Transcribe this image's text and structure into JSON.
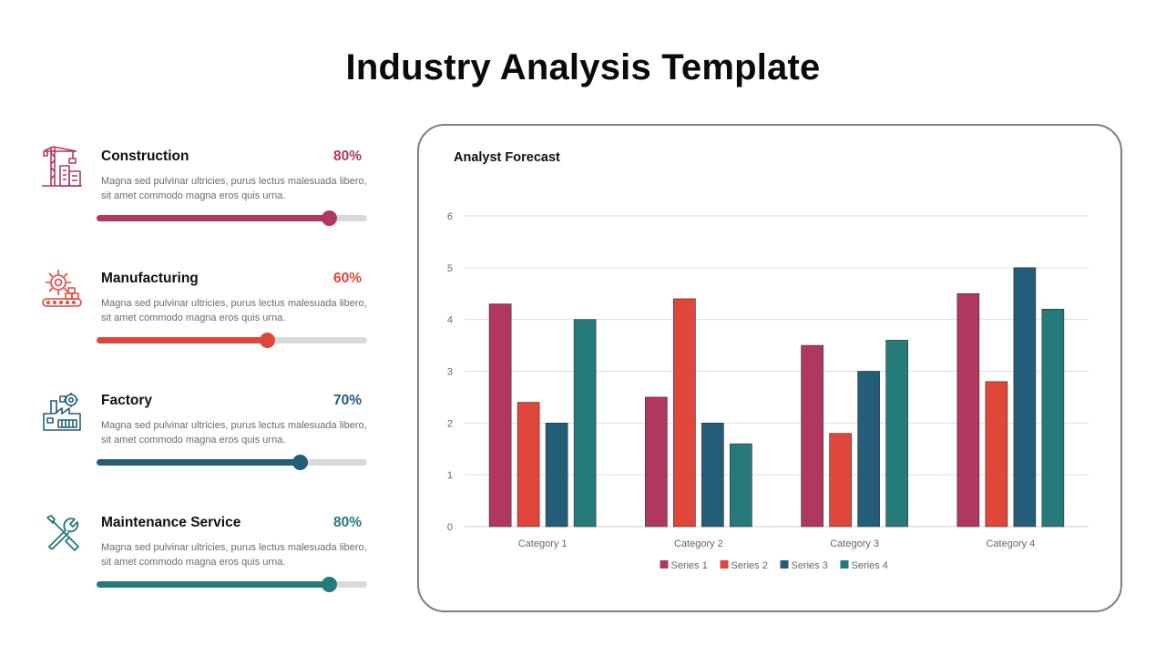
{
  "title": "Industry Analysis Template",
  "items": [
    {
      "name": "Construction",
      "percent_label": "80%",
      "progress": 0.86,
      "color": "#B0385E",
      "icon": "construction-crane-icon",
      "description": "Magna sed pulvinar ultricies, purus lectus malesuada libero, sit amet commodo magna eros quis urna."
    },
    {
      "name": "Manufacturing",
      "percent_label": "60%",
      "progress": 0.63,
      "color": "#E0463A",
      "icon": "manufacturing-gear-icon",
      "description": "Magna sed pulvinar ultricies, purus lectus malesuada libero, sit amet commodo magna eros quis urna."
    },
    {
      "name": "Factory",
      "percent_label": "70%",
      "progress": 0.75,
      "color": "#245D78",
      "icon": "factory-icon",
      "description": "Magna sed pulvinar ultricies, purus lectus malesuada libero, sit amet commodo magna eros quis urna."
    },
    {
      "name": "Maintenance Service",
      "percent_label": "80%",
      "progress": 0.86,
      "color": "#267A7A",
      "icon": "wrench-screwdriver-icon",
      "description": "Magna sed pulvinar ultricies, purus lectus malesuada libero, sit amet commodo magna eros quis urna."
    }
  ],
  "chart_data": {
    "type": "bar",
    "title": "Analyst Forecast",
    "categories": [
      "Category 1",
      "Category 2",
      "Category 3",
      "Category 4"
    ],
    "series": [
      {
        "name": "Series 1",
        "color": "#B0385E",
        "values": [
          4.3,
          2.5,
          3.5,
          4.5
        ]
      },
      {
        "name": "Series 2",
        "color": "#E0463A",
        "values": [
          2.4,
          4.4,
          1.8,
          2.8
        ]
      },
      {
        "name": "Series 3",
        "color": "#245D78",
        "values": [
          2.0,
          2.0,
          3.0,
          5.0
        ]
      },
      {
        "name": "Series 4",
        "color": "#267A7A",
        "values": [
          4.0,
          1.6,
          3.6,
          4.2
        ]
      }
    ],
    "ylim": [
      0,
      6
    ],
    "yticks": [
      "0",
      "1",
      "2",
      "3",
      "4",
      "5",
      "6"
    ],
    "grid": true,
    "legend": "bottom"
  }
}
